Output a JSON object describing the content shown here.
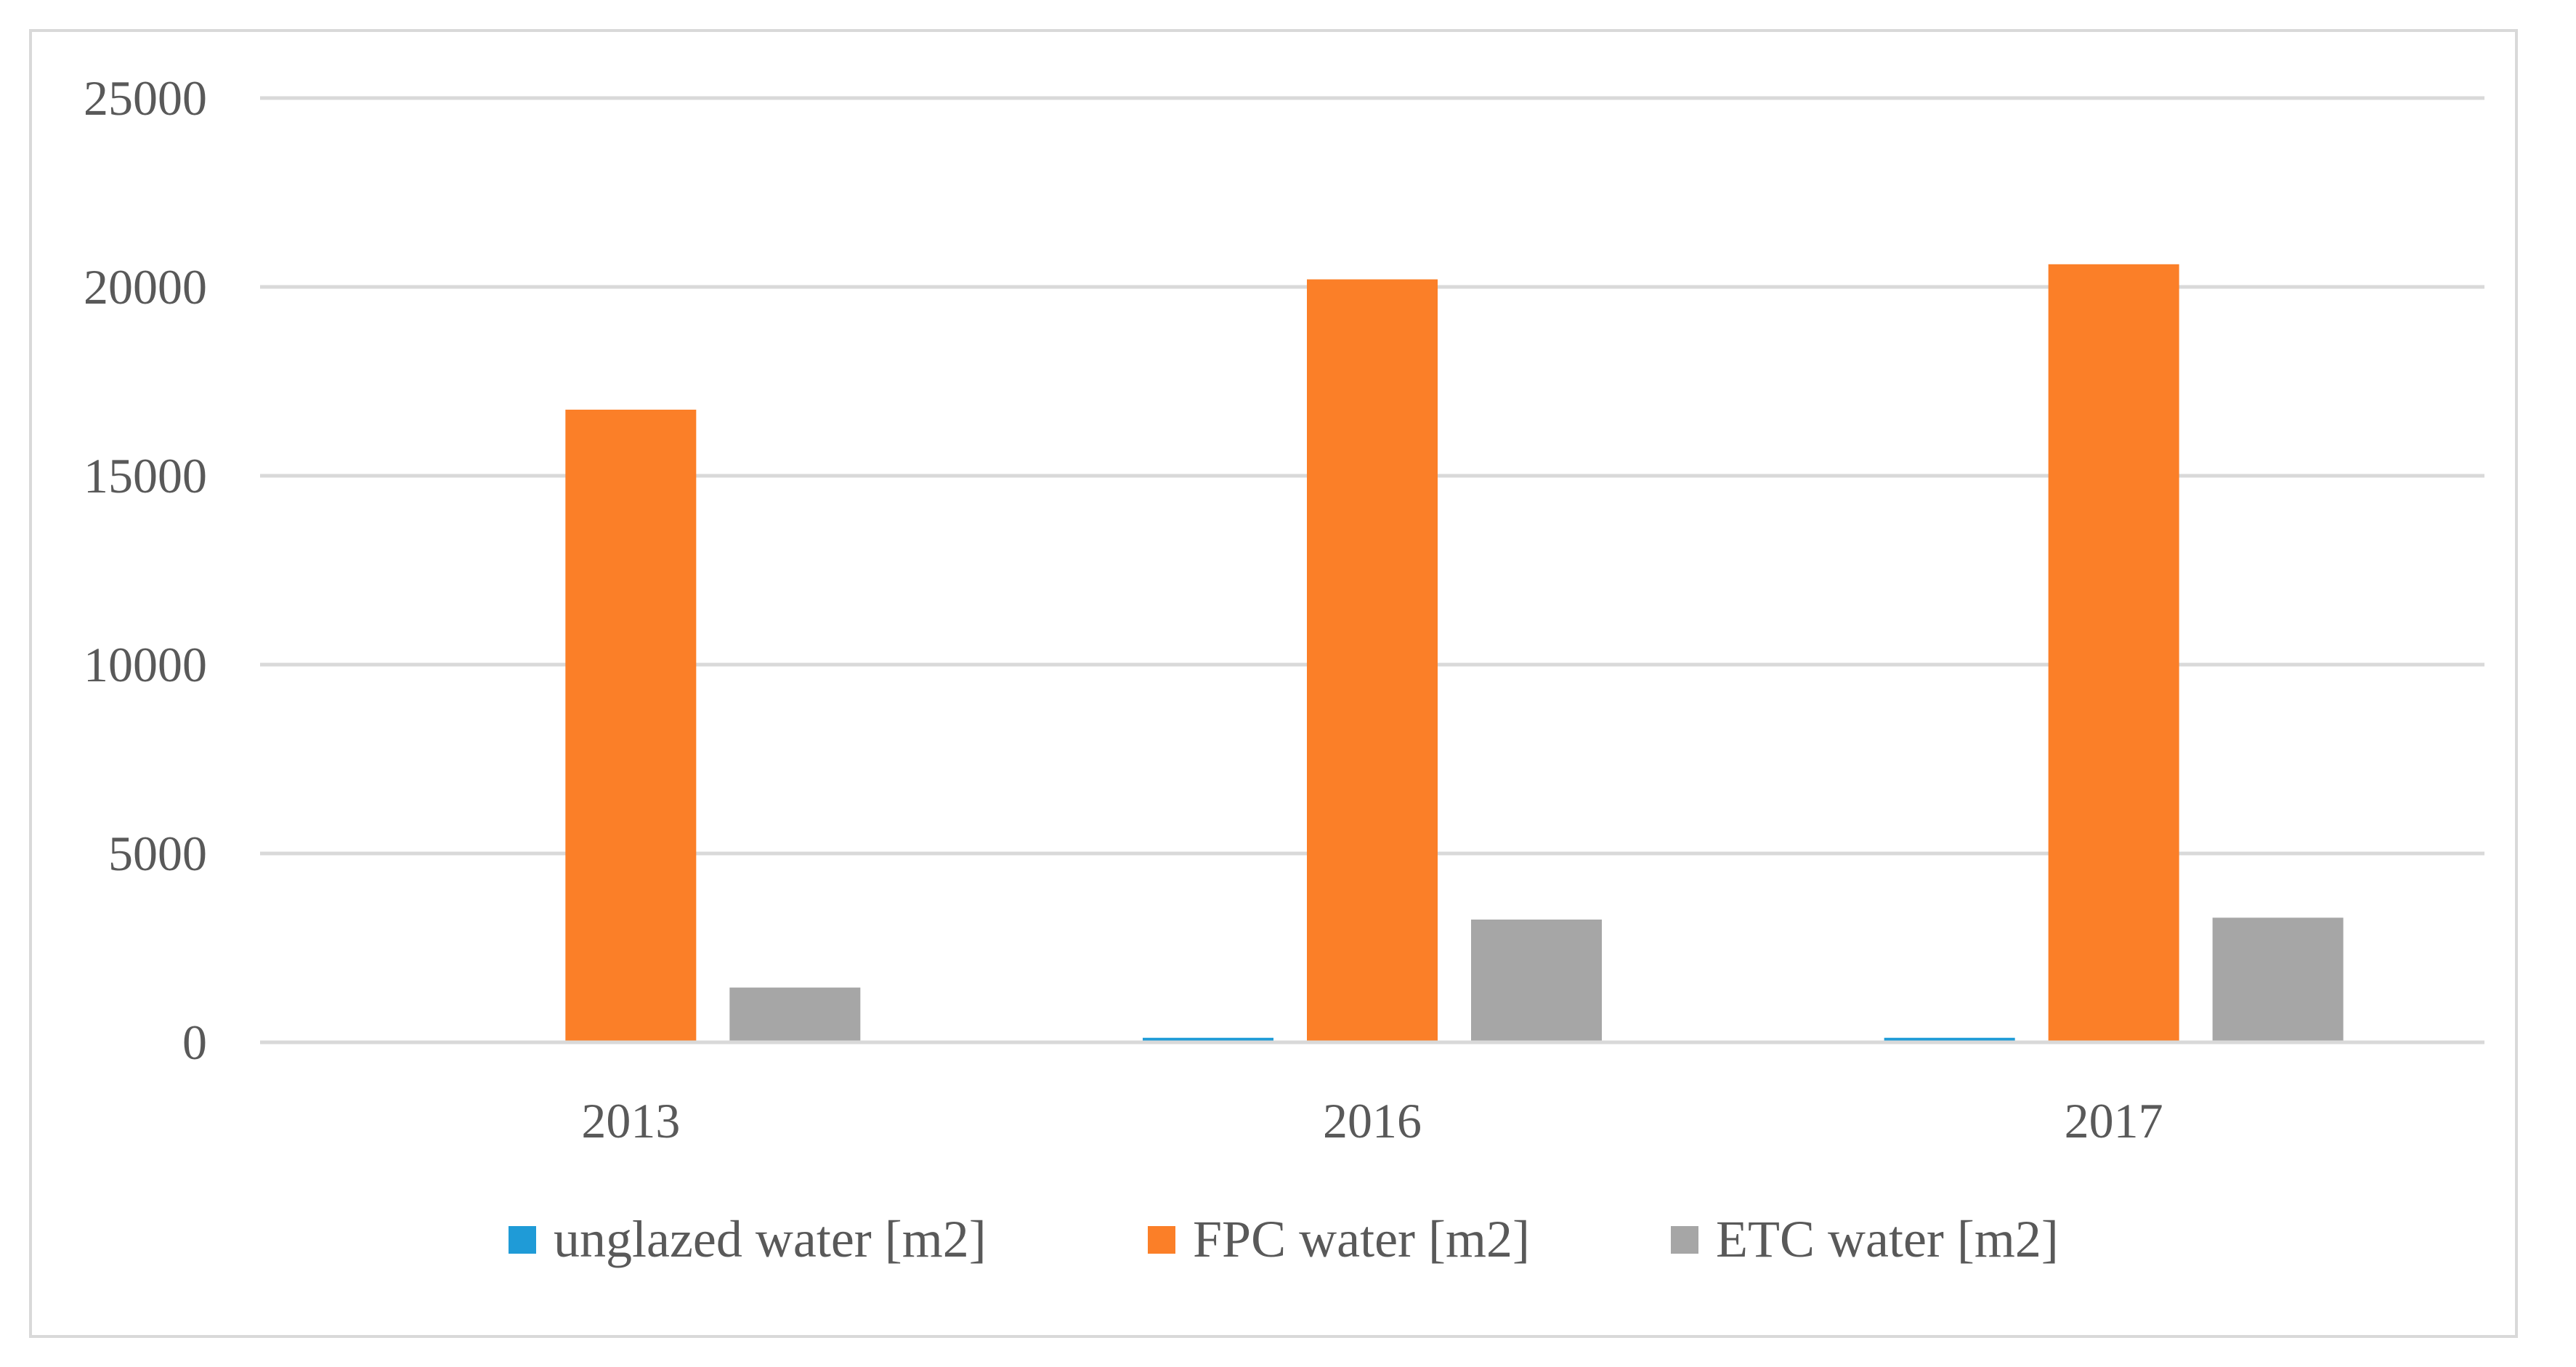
{
  "chart_data": {
    "type": "bar",
    "title": "",
    "xlabel": "",
    "ylabel": "",
    "categories": [
      "2013",
      "2016",
      "2017"
    ],
    "series": [
      {
        "name": "unglazed water [m2]",
        "color": "#1f9bd7",
        "values": [
          0,
          120,
          120
        ]
      },
      {
        "name": "FPC water [m2]",
        "color": "#fb7f28",
        "values": [
          16750,
          20200,
          20600
        ]
      },
      {
        "name": "ETC water [m2]",
        "color": "#a6a6a6",
        "values": [
          1450,
          3250,
          3300
        ]
      }
    ],
    "ylim": [
      0,
      25000
    ],
    "yticks": [
      0,
      5000,
      10000,
      15000,
      20000,
      25000
    ],
    "grid": true,
    "legend_position": "bottom"
  }
}
